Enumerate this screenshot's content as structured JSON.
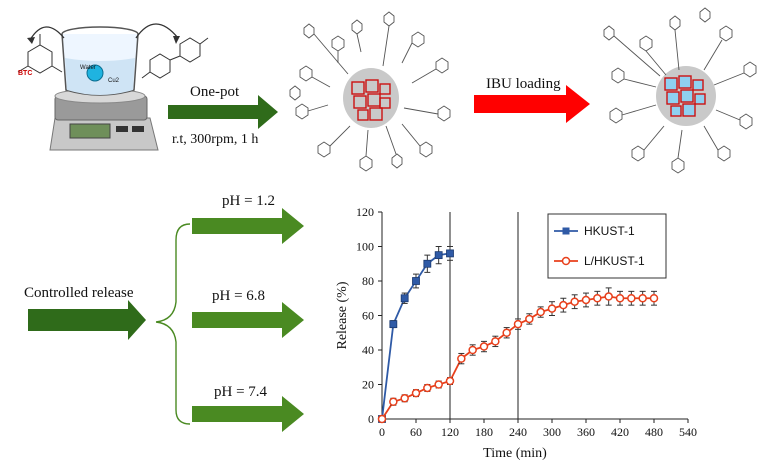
{
  "top": {
    "molecule_label": "BTC",
    "beaker_labels": {
      "liquid": "Water",
      "cu": "Cu2"
    },
    "step1": {
      "label": "One-pot",
      "conditions": "r.t, 300rpm, 1 h"
    },
    "step2": {
      "label": "IBU loading"
    },
    "colors": {
      "one_pot_arrow": "#2f6b1a",
      "ibu_arrow": "#ff0000",
      "crystal": "#cc1111",
      "crystal_inner": "#3aa0e0"
    }
  },
  "bottom": {
    "controlled_release": "Controlled release",
    "ph_branches": [
      "pH = 1.2",
      "pH = 6.8",
      "pH = 7.4"
    ],
    "arrow_color": "#4a8a22"
  },
  "chart_data": {
    "type": "line",
    "title": "",
    "xlabel": "Time (min)",
    "ylabel": "Release (%)",
    "xlim": [
      0,
      540
    ],
    "ylim": [
      0,
      120
    ],
    "xticks": [
      "0",
      "60",
      "120",
      "180",
      "240",
      "300",
      "360",
      "420",
      "480",
      "540"
    ],
    "yticks": [
      "0",
      "20",
      "40",
      "60",
      "80",
      "100",
      "120"
    ],
    "vlines": [
      120,
      240
    ],
    "legend_position": "right",
    "series": [
      {
        "name": "HKUST-1",
        "color": "#2f5aa6",
        "marker": "square",
        "x": [
          0,
          20,
          40,
          60,
          80,
          100,
          120
        ],
        "y": [
          0,
          55,
          70,
          80,
          90,
          95,
          96
        ],
        "err": [
          0,
          2,
          3,
          4,
          5,
          5,
          4
        ]
      },
      {
        "name": "L/HKUST-1",
        "color": "#e8401c",
        "marker": "circle",
        "x": [
          0,
          20,
          40,
          60,
          80,
          100,
          120,
          140,
          160,
          180,
          200,
          220,
          240,
          260,
          280,
          300,
          320,
          340,
          360,
          380,
          400,
          420,
          440,
          460,
          480
        ],
        "y": [
          0,
          10,
          12,
          15,
          18,
          20,
          22,
          35,
          40,
          42,
          45,
          50,
          55,
          58,
          62,
          64,
          66,
          68,
          69,
          70,
          71,
          70,
          70,
          70,
          70
        ],
        "err": [
          0,
          2,
          2,
          2,
          2,
          2,
          2,
          3,
          3,
          3,
          3,
          3,
          3,
          3,
          3,
          4,
          4,
          4,
          4,
          4,
          5,
          4,
          4,
          4,
          4
        ]
      }
    ]
  }
}
